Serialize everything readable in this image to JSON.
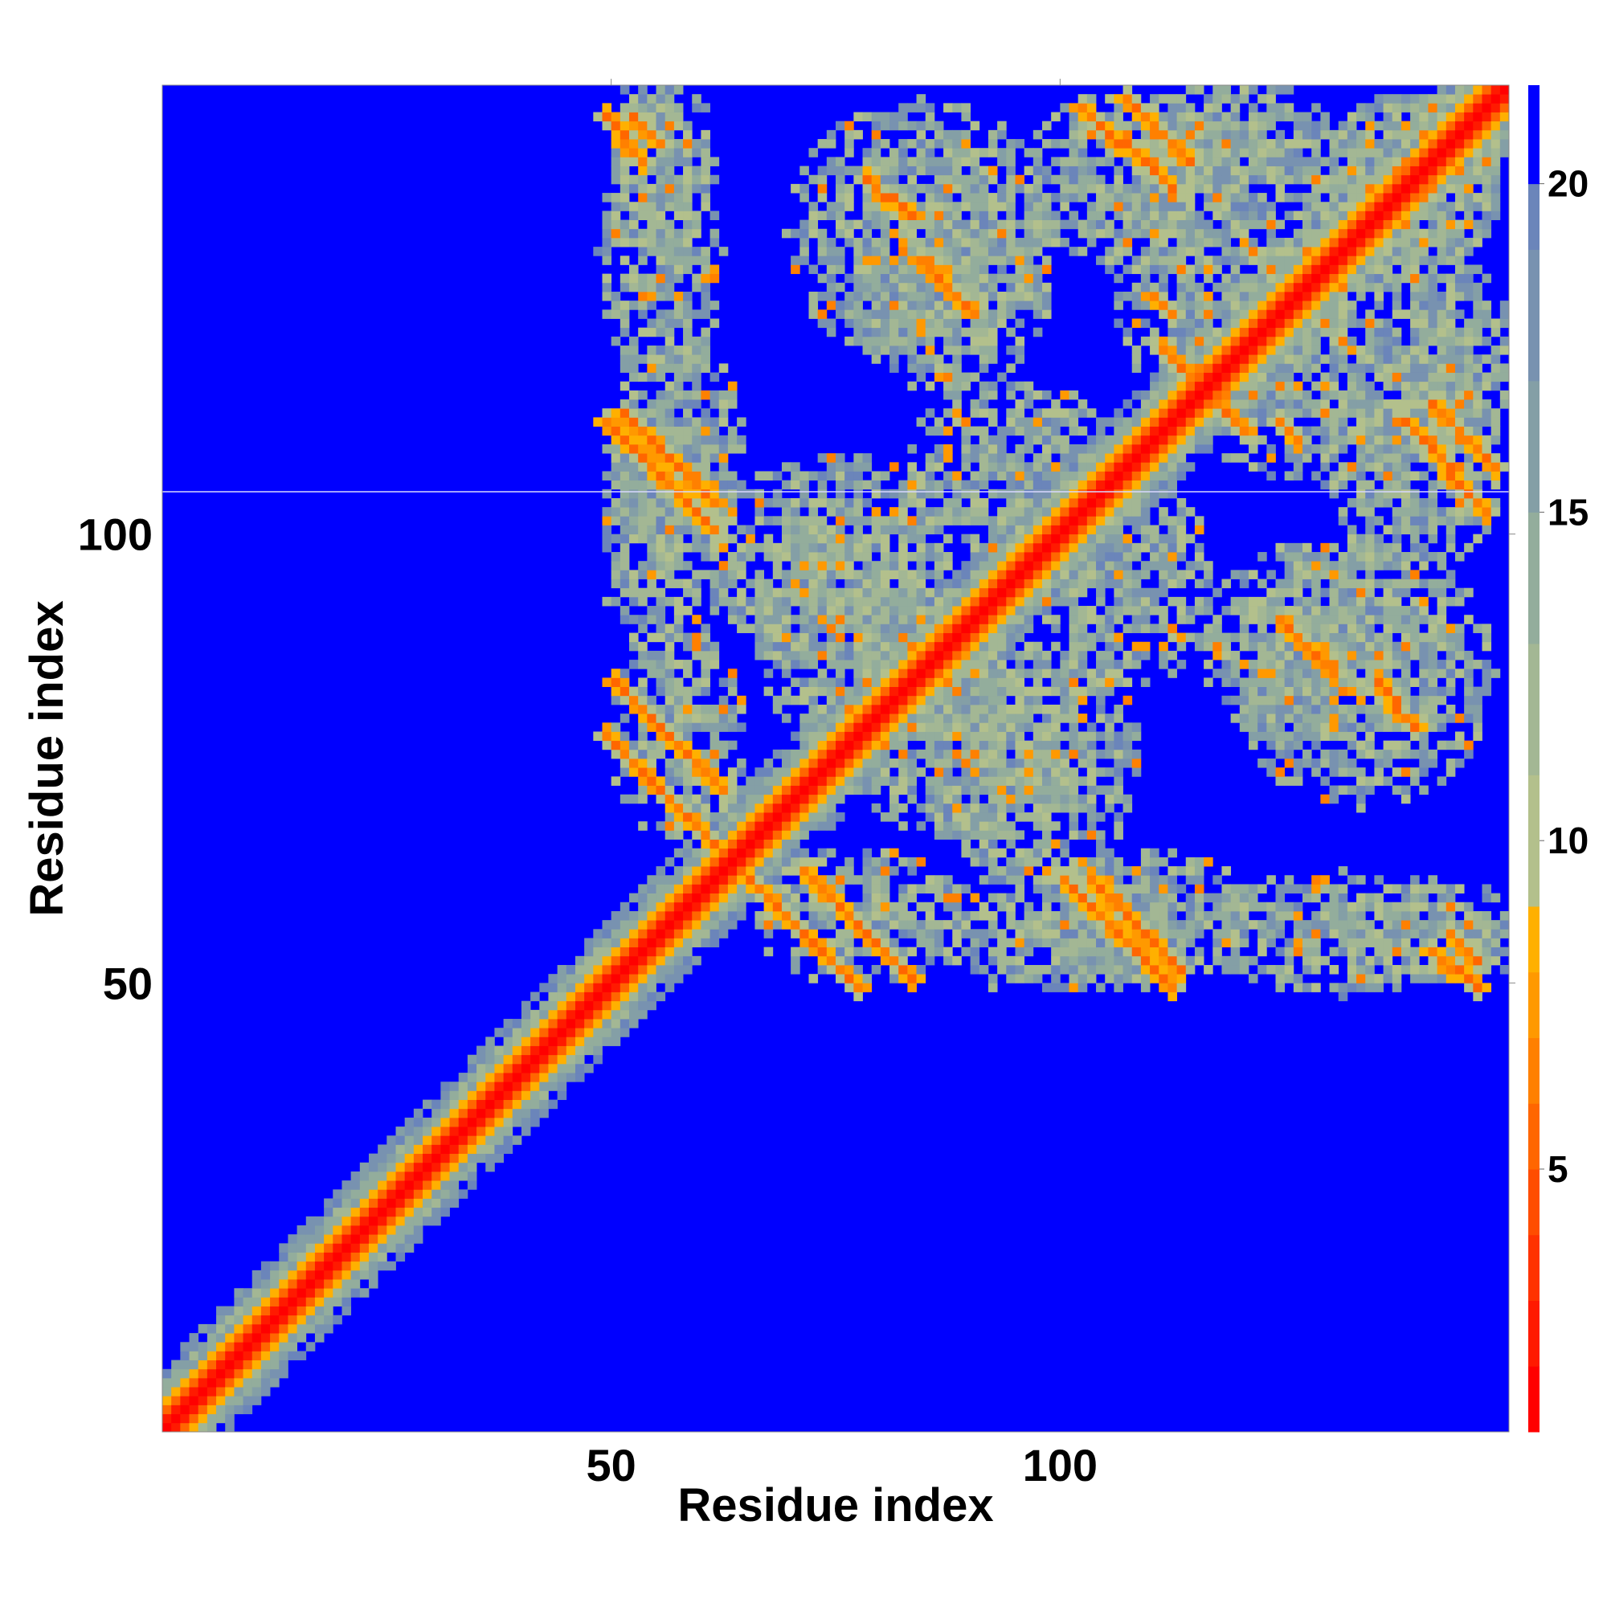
{
  "chart_data": {
    "type": "heatmap",
    "title": "",
    "xlabel": "Residue index",
    "ylabel": "Residue index",
    "n_residues": 150,
    "xlim": [
      1,
      150
    ],
    "ylim": [
      1,
      150
    ],
    "x_ticks": [
      50,
      100
    ],
    "y_ticks": [
      50,
      100
    ],
    "x_tick_labels": [
      "50",
      "100"
    ],
    "y_tick_labels": [
      "50",
      "100"
    ],
    "colorbar": {
      "range": [
        1,
        21.5
      ],
      "ticks": [
        5,
        10,
        15,
        20
      ],
      "tick_labels": [
        "5",
        "10",
        "15",
        "20"
      ],
      "bands": [
        {
          "from": 1,
          "to": 2,
          "color": "#ff0000"
        },
        {
          "from": 2,
          "to": 3,
          "color": "#ff1a00"
        },
        {
          "from": 3,
          "to": 4,
          "color": "#ff3300"
        },
        {
          "from": 4,
          "to": 5,
          "color": "#ff4d00"
        },
        {
          "from": 5,
          "to": 6,
          "color": "#ff6600"
        },
        {
          "from": 6,
          "to": 7,
          "color": "#ff8000"
        },
        {
          "from": 7,
          "to": 8,
          "color": "#ff9900"
        },
        {
          "from": 8,
          "to": 9,
          "color": "#ffb000"
        },
        {
          "from": 9,
          "to": 11,
          "color": "#b3c08c"
        },
        {
          "from": 11,
          "to": 13,
          "color": "#a3b794"
        },
        {
          "from": 13,
          "to": 15,
          "color": "#93ad9c"
        },
        {
          "from": 15,
          "to": 17,
          "color": "#849fa6"
        },
        {
          "from": 17,
          "to": 19,
          "color": "#7892b0"
        },
        {
          "from": 19,
          "to": 20,
          "color": "#6b85ba"
        },
        {
          "from": 20,
          "to": 21.5,
          "color": "#0000ff"
        }
      ]
    },
    "matrix_description": "Symmetric residue-residue distance map (values in colorbar units). Main diagonal near 1 (red) with near-diagonal band to ~15. Off-diagonal contact streaks (antiparallel/parallel) listed as segments in data units.",
    "diagonal_band": {
      "center": 1,
      "width_core": 2,
      "width_halo": 6
    },
    "contact_segments": [
      {
        "x1": 51,
        "y1": 84,
        "x2": 63,
        "y2": 72,
        "value": 6
      },
      {
        "x1": 52,
        "y1": 114,
        "x2": 62,
        "y2": 104,
        "value": 6
      },
      {
        "x1": 53,
        "y1": 147,
        "x2": 56,
        "y2": 144,
        "value": 6
      },
      {
        "x1": 66,
        "y1": 62,
        "x2": 78,
        "y2": 50,
        "value": 6
      },
      {
        "x1": 79,
        "y1": 140,
        "x2": 84,
        "y2": 136,
        "value": 6
      },
      {
        "x1": 101,
        "y1": 62,
        "x2": 113,
        "y2": 50,
        "value": 6
      },
      {
        "x1": 103,
        "y1": 148,
        "x2": 113,
        "y2": 139,
        "value": 6
      },
      {
        "x1": 111,
        "y1": 127,
        "x2": 113,
        "y2": 125,
        "value": 6
      },
      {
        "x1": 118,
        "y1": 115,
        "x2": 121,
        "y2": 112,
        "value": 6
      },
      {
        "x1": 126,
        "y1": 90,
        "x2": 131,
        "y2": 85,
        "value": 6
      },
      {
        "x1": 142,
        "y1": 115,
        "x2": 149,
        "y2": 108,
        "value": 6
      },
      {
        "x1": 142,
        "y1": 54,
        "x2": 147,
        "y2": 50,
        "value": 6
      }
    ],
    "contact_clouds": [
      {
        "cx": 56,
        "cy": 142,
        "rx": 6,
        "ry": 12,
        "value": 13
      },
      {
        "cx": 85,
        "cy": 134,
        "rx": 15,
        "ry": 15,
        "value": 13
      },
      {
        "cx": 57,
        "cy": 100,
        "rx": 8,
        "ry": 15,
        "value": 13
      },
      {
        "cx": 75,
        "cy": 98,
        "rx": 14,
        "ry": 12,
        "value": 13
      },
      {
        "cx": 90,
        "cy": 78,
        "rx": 14,
        "ry": 12,
        "value": 13
      },
      {
        "cx": 78,
        "cy": 58,
        "rx": 12,
        "ry": 8,
        "value": 13
      },
      {
        "cx": 110,
        "cy": 58,
        "rx": 12,
        "ry": 8,
        "value": 13
      },
      {
        "cx": 132,
        "cy": 56,
        "rx": 16,
        "ry": 7,
        "value": 13
      },
      {
        "cx": 130,
        "cy": 88,
        "rx": 14,
        "ry": 12,
        "value": 13
      },
      {
        "cx": 108,
        "cy": 95,
        "rx": 10,
        "ry": 12,
        "value": 13
      },
      {
        "cx": 108,
        "cy": 140,
        "rx": 12,
        "ry": 10,
        "value": 13
      },
      {
        "cx": 130,
        "cy": 120,
        "rx": 18,
        "ry": 14,
        "value": 13
      },
      {
        "cx": 140,
        "cy": 140,
        "rx": 10,
        "ry": 10,
        "value": 13
      },
      {
        "cx": 120,
        "cy": 145,
        "rx": 12,
        "ry": 6,
        "value": 13
      }
    ],
    "grid": false,
    "legend": "colorbar-right"
  }
}
